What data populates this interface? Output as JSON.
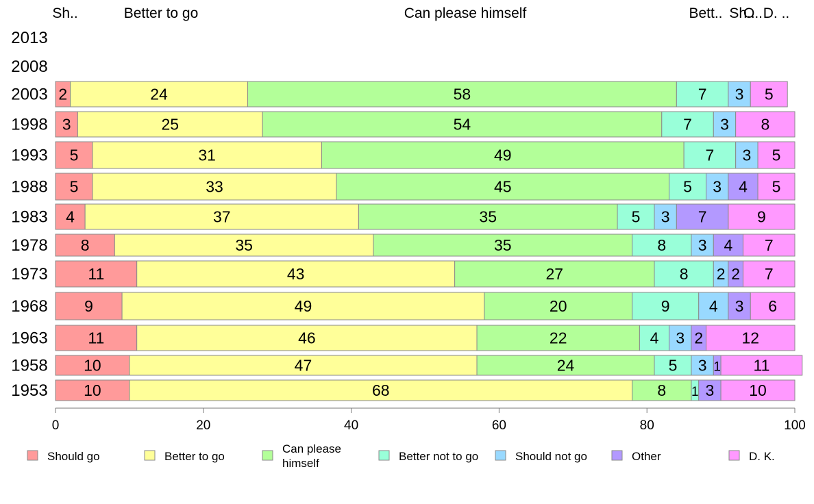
{
  "chart_data": {
    "type": "bar",
    "orientation": "horizontal",
    "stacked": true,
    "categories": [
      "2013",
      "2008",
      "2003",
      "1998",
      "1993",
      "1988",
      "1983",
      "1978",
      "1973",
      "1968",
      "1963",
      "1958",
      "1953"
    ],
    "series": [
      {
        "name": "Should go",
        "color": "#ff9a9a",
        "values": [
          null,
          null,
          2,
          3,
          5,
          5,
          4,
          8,
          11,
          9,
          11,
          10,
          10
        ]
      },
      {
        "name": "Better to go",
        "color": "#ffff99",
        "values": [
          null,
          null,
          24,
          25,
          31,
          33,
          37,
          35,
          43,
          49,
          46,
          47,
          68
        ]
      },
      {
        "name": "Can please himself",
        "color": "#b3ff99",
        "values": [
          null,
          null,
          58,
          54,
          49,
          45,
          35,
          35,
          27,
          20,
          22,
          24,
          8
        ]
      },
      {
        "name": "Better not to go",
        "color": "#99ffd9",
        "values": [
          null,
          null,
          7,
          7,
          7,
          5,
          5,
          8,
          8,
          9,
          4,
          5,
          1
        ]
      },
      {
        "name": "Should not go",
        "color": "#99d9ff",
        "values": [
          null,
          null,
          3,
          3,
          3,
          3,
          3,
          3,
          2,
          4,
          3,
          3,
          0
        ]
      },
      {
        "name": "Other",
        "color": "#b399ff",
        "values": [
          null,
          null,
          0,
          0,
          0,
          4,
          7,
          4,
          2,
          3,
          2,
          1,
          3
        ]
      },
      {
        "name": "D. K.",
        "color": "#ff99ff",
        "values": [
          null,
          null,
          5,
          8,
          5,
          5,
          9,
          7,
          7,
          6,
          12,
          11,
          10
        ]
      }
    ],
    "top_labels": [
      "Sh..",
      "Better to go",
      "Can please himself",
      "Bett..",
      "Sh..",
      "O..",
      "D. .."
    ],
    "x_ticks": [
      0,
      20,
      40,
      60,
      80,
      100
    ],
    "xlim": [
      0,
      100
    ],
    "legend_labels": [
      "Should go",
      "Better to go",
      "Can please himself",
      "Better not to go",
      "Should not go",
      "Other",
      "D. K."
    ],
    "legend_position": "bottom",
    "grid": false
  }
}
